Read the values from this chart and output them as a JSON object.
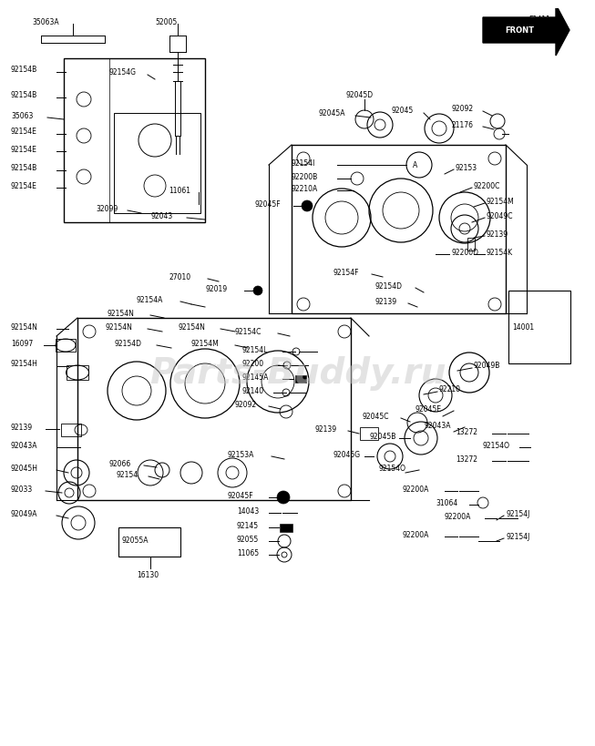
{
  "bg": "#ffffff",
  "lc": "#000000",
  "wm_text": "Parts-Buddy.ru",
  "wm_color": "#c8c8c8",
  "wm_alpha": 0.5,
  "page_code": "E1411",
  "front_label": "FRONT",
  "figsize": [
    6.34,
    8.0
  ],
  "dpi": 100,
  "font_size_label": 6.0,
  "font_size_small": 5.5
}
